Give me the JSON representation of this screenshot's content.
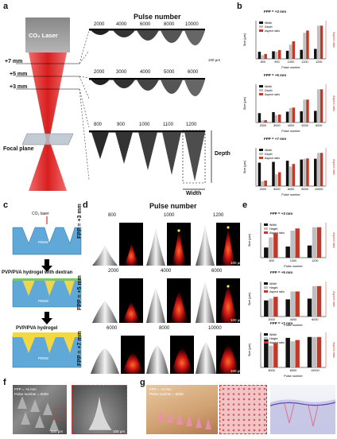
{
  "panel_labels": {
    "a": "a",
    "b": "b",
    "c": "c",
    "d": "d",
    "e": "e",
    "f": "f",
    "g": "g"
  },
  "panel_a": {
    "laser_label": "CO₂ Laser",
    "pulse_header": "Pulse number",
    "focal_plane": "Focal plane",
    "heights": [
      "+7 mm",
      "+5 mm",
      "+3 mm"
    ],
    "row_top_pulses": [
      "2000",
      "4000",
      "6000",
      "8000",
      "10000"
    ],
    "row_mid_pulses": [
      "2000",
      "3000",
      "4000",
      "5000",
      "6000"
    ],
    "row_bot_pulses": [
      "800",
      "900",
      "1000",
      "1100",
      "1200"
    ],
    "scale_label": "100 µm",
    "depth_label": "Depth",
    "width_label": "Width"
  },
  "panel_b": {
    "charts": [
      {
        "title": "FPP = +3 mm",
        "categories": [
          "800",
          "900",
          "1000",
          "1100",
          "1200"
        ],
        "width": [
          300,
          320,
          340,
          380,
          420
        ],
        "depth": [
          150,
          300,
          600,
          1100,
          1400
        ],
        "aspect": [
          0.5,
          0.9,
          1.8,
          2.9,
          3.4
        ]
      },
      {
        "title": "FPP = +5 mm",
        "categories": [
          "2000",
          "3000",
          "4000",
          "5000",
          "6000"
        ],
        "width": [
          450,
          500,
          520,
          540,
          560
        ],
        "depth": [
          100,
          350,
          700,
          1100,
          1600
        ],
        "aspect": [
          0.2,
          0.7,
          1.3,
          2.0,
          2.9
        ]
      },
      {
        "title": "FPP = +7 mm",
        "categories": [
          "2000",
          "4000",
          "6000",
          "8000",
          "10000"
        ],
        "width": [
          600,
          620,
          650,
          680,
          700
        ],
        "depth": [
          120,
          300,
          500,
          700,
          850
        ],
        "aspect": [
          0.2,
          0.5,
          0.8,
          1.0,
          1.2
        ]
      }
    ],
    "ylabel_left": "Size (µm)",
    "ylabel_right": "Aspect ratio",
    "xlabel": "Pulse number",
    "legend": [
      "Width",
      "Depth",
      "Aspect ratio"
    ]
  },
  "panel_c": {
    "co2_label": "CO₂ laser",
    "pdms": "PDMS",
    "step2_title": "PVP/PVA hydrogel with dextran",
    "step3_title": "PVP/PVA hydrogel"
  },
  "panel_d": {
    "pulse_header": "Pulse number",
    "rows": [
      {
        "fpp": "FPP = +3 mm",
        "pulses": [
          "800",
          "1000",
          "1200"
        ]
      },
      {
        "fpp": "FPP = +5 mm",
        "pulses": [
          "2000",
          "4000",
          "6000"
        ]
      },
      {
        "fpp": "FPP = +7 mm",
        "pulses": [
          "6000",
          "8000",
          "10000"
        ]
      }
    ],
    "scale_label": "100 µm"
  },
  "panel_e": {
    "charts": [
      {
        "title": "FPP = +3 mm",
        "categories": [
          "800",
          "1000",
          "1200"
        ],
        "width": [
          300,
          330,
          360
        ],
        "height": [
          600,
          800,
          900
        ],
        "aspect": [
          2.0,
          2.4,
          2.5
        ]
      },
      {
        "title": "FPP = +5 mm",
        "categories": [
          "2000",
          "4000",
          "6000"
        ],
        "width": [
          450,
          480,
          500
        ],
        "height": [
          500,
          700,
          850
        ],
        "aspect": [
          1.1,
          1.4,
          1.7
        ]
      },
      {
        "title": "FPP = +7 mm",
        "categories": [
          "6000",
          "8000",
          "10000"
        ],
        "width": [
          650,
          680,
          700
        ],
        "height": [
          500,
          600,
          700
        ],
        "aspect": [
          0.8,
          0.9,
          1.0
        ]
      }
    ],
    "ylabel_left": "Size (µm)",
    "ylabel_right": "Aspect ratio",
    "xlabel": "Pulse number",
    "legend": [
      "Width",
      "Height",
      "Aspect ratio"
    ]
  },
  "panel_f": {
    "caption_line1": "FPP = +5 mm",
    "caption_line2": "Pulse number = 6000",
    "scale_left": "500 µm",
    "scale_right": "100 µm"
  },
  "panel_g": {
    "caption_line1": "FPP = +5 mm",
    "caption_line2": "Pulse number = 6000"
  },
  "colors": {
    "width_bar": "#111111",
    "depth_bar": "#bfbfbf",
    "aspect_bar": "#c0392b",
    "laser_red": "#e02020",
    "hydrogel_yellow": "#f5d742",
    "pdms_blue": "#5fa8d8"
  }
}
